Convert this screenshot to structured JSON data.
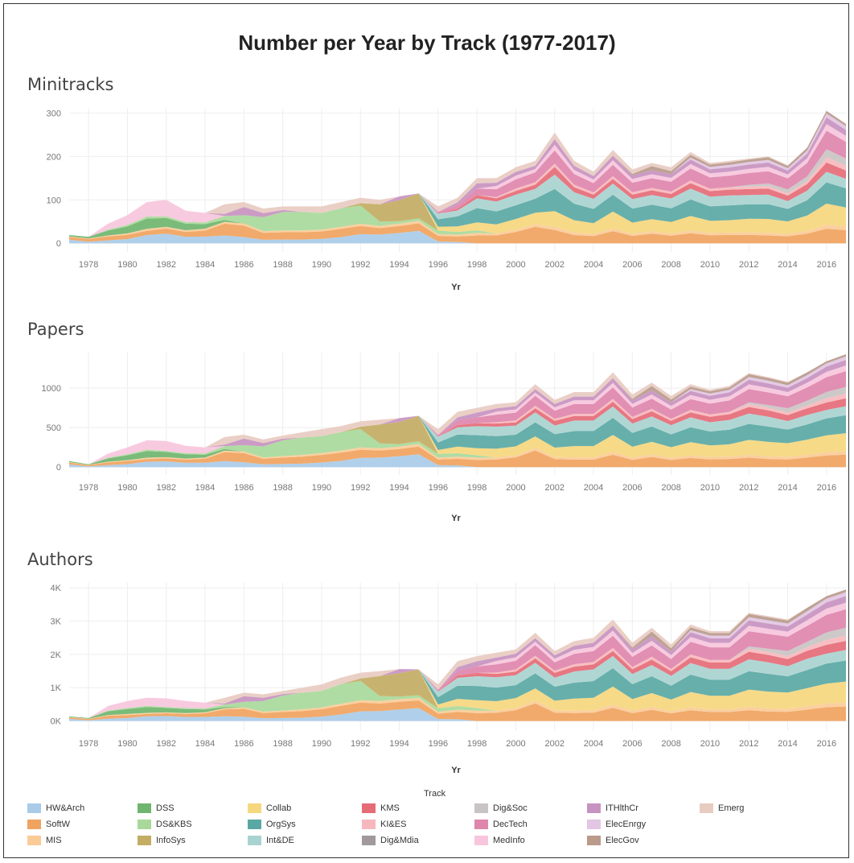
{
  "title": "Number per Year by Track (1977-2017)",
  "legend_title": "Track",
  "tracks": [
    {
      "name": "HW&Arch",
      "color": "#a9cbe8"
    },
    {
      "name": "SoftW",
      "color": "#f0a35e"
    },
    {
      "name": "MIS",
      "color": "#fbcb97"
    },
    {
      "name": "DSS",
      "color": "#6fb56f"
    },
    {
      "name": "DS&KBS",
      "color": "#a8d99a"
    },
    {
      "name": "InfoSys",
      "color": "#c2ad63"
    },
    {
      "name": "Collab",
      "color": "#f5d77e"
    },
    {
      "name": "OrgSys",
      "color": "#5aa8a4"
    },
    {
      "name": "Int&DE",
      "color": "#a9d3d0"
    },
    {
      "name": "KMS",
      "color": "#e56b77"
    },
    {
      "name": "KI&ES",
      "color": "#f7b8bd"
    },
    {
      "name": "Dig&Mdia",
      "color": "#a09a9a"
    },
    {
      "name": "Dig&Soc",
      "color": "#c9c4c4"
    },
    {
      "name": "DecTech",
      "color": "#de86ac"
    },
    {
      "name": "MedInfo",
      "color": "#f7c6dc"
    },
    {
      "name": "ITHlthCr",
      "color": "#c793c0"
    },
    {
      "name": "ElecEnrgy",
      "color": "#e2c6e3"
    },
    {
      "name": "ElecGov",
      "color": "#b99a8b"
    },
    {
      "name": "Emerg",
      "color": "#e8cbc1"
    }
  ],
  "chart_data": [
    {
      "type": "area",
      "panel": "Minitracks",
      "xlabel": "Yr",
      "ylabel": "",
      "x": [
        1977,
        1978,
        1979,
        1980,
        1981,
        1982,
        1983,
        1984,
        1985,
        1986,
        1987,
        1988,
        1989,
        1990,
        1991,
        1992,
        1993,
        1994,
        1995,
        1996,
        1997,
        1998,
        1999,
        2000,
        2001,
        2002,
        2003,
        2004,
        2005,
        2006,
        2007,
        2008,
        2009,
        2010,
        2011,
        2012,
        2013,
        2014,
        2015,
        2016,
        2017
      ],
      "xticks": [
        1978,
        1980,
        1982,
        1984,
        1986,
        1988,
        1990,
        1992,
        1994,
        1996,
        1998,
        2000,
        2002,
        2004,
        2006,
        2008,
        2010,
        2012,
        2014,
        2016
      ],
      "ylim": [
        -20,
        310
      ],
      "yticks": [
        0,
        100,
        200,
        300
      ],
      "ytick_labels": [
        "0",
        "100",
        "200",
        "300"
      ],
      "totals": [
        30,
        25,
        45,
        65,
        95,
        100,
        75,
        70,
        90,
        95,
        80,
        85,
        85,
        85,
        95,
        105,
        100,
        108,
        115,
        85,
        105,
        150,
        150,
        175,
        190,
        255,
        190,
        165,
        215,
        170,
        185,
        175,
        210,
        185,
        190,
        195,
        200,
        180,
        220,
        305,
        275
      ]
    },
    {
      "type": "area",
      "panel": "Papers",
      "xlabel": "Yr",
      "ylabel": "",
      "x": [
        1977,
        1978,
        1979,
        1980,
        1981,
        1982,
        1983,
        1984,
        1985,
        1986,
        1987,
        1988,
        1989,
        1990,
        1991,
        1992,
        1993,
        1994,
        1995,
        1996,
        1997,
        1998,
        1999,
        2000,
        2001,
        2002,
        2003,
        2004,
        2005,
        2006,
        2007,
        2008,
        2009,
        2010,
        2011,
        2012,
        2013,
        2014,
        2015,
        2016,
        2017
      ],
      "xticks": [
        1978,
        1980,
        1982,
        1984,
        1986,
        1988,
        1990,
        1992,
        1994,
        1996,
        1998,
        2000,
        2002,
        2004,
        2006,
        2008,
        2010,
        2012,
        2014,
        2016
      ],
      "ylim": [
        -100,
        1450
      ],
      "yticks": [
        0,
        500,
        1000
      ],
      "ytick_labels": [
        "0",
        "500",
        "1000"
      ],
      "totals": [
        120,
        60,
        170,
        250,
        340,
        330,
        270,
        250,
        380,
        410,
        350,
        400,
        440,
        480,
        520,
        580,
        600,
        620,
        650,
        480,
        700,
        750,
        800,
        820,
        1050,
        850,
        950,
        950,
        1200,
        920,
        1070,
        900,
        1050,
        980,
        1030,
        1190,
        1140,
        1080,
        1200,
        1340,
        1430
      ]
    },
    {
      "type": "area",
      "panel": "Authors",
      "xlabel": "Yr",
      "ylabel": "",
      "x": [
        1977,
        1978,
        1979,
        1980,
        1981,
        1982,
        1983,
        1984,
        1985,
        1986,
        1987,
        1988,
        1989,
        1990,
        1991,
        1992,
        1993,
        1994,
        1995,
        1996,
        1997,
        1998,
        1999,
        2000,
        2001,
        2002,
        2003,
        2004,
        2005,
        2006,
        2007,
        2008,
        2009,
        2010,
        2011,
        2012,
        2013,
        2014,
        2015,
        2016,
        2017
      ],
      "xticks": [
        1978,
        1980,
        1982,
        1984,
        1986,
        1988,
        1990,
        1992,
        1994,
        1996,
        1998,
        2000,
        2002,
        2004,
        2006,
        2008,
        2010,
        2012,
        2014,
        2016
      ],
      "ylim": [
        -300,
        4150
      ],
      "yticks": [
        0,
        1000,
        2000,
        3000,
        4000
      ],
      "ytick_labels": [
        "0K",
        "1K",
        "2K",
        "3K",
        "4K"
      ],
      "totals": [
        220,
        150,
        450,
        600,
        700,
        680,
        600,
        550,
        700,
        850,
        800,
        900,
        1000,
        1100,
        1300,
        1450,
        1500,
        1560,
        1550,
        1100,
        1800,
        1950,
        2050,
        2150,
        2650,
        2100,
        2400,
        2500,
        3050,
        2350,
        2800,
        2300,
        2900,
        2700,
        2700,
        3250,
        3150,
        3050,
        3400,
        3750,
        3950
      ]
    }
  ],
  "shares": [
    [
      0.28,
      0.2,
      0.05,
      0.1,
      0.0,
      0.0,
      0.0,
      0.0,
      0.0,
      0.0,
      0.0,
      0.0,
      0.0,
      0.0,
      0.0,
      0.0,
      0.0,
      0.0,
      0.0,
      0.37
    ],
    [
      0.15,
      0.25,
      0.05,
      0.15,
      0.0,
      0.0,
      0.0,
      0.0,
      0.0,
      0.0,
      0.0,
      0.0,
      0.0,
      0.0,
      0.0,
      0.0,
      0.0,
      0.0,
      0.0,
      0.4
    ],
    [
      0.15,
      0.2,
      0.05,
      0.25,
      0.05,
      0.0,
      0.0,
      0.0,
      0.0,
      0.0,
      0.0,
      0.0,
      0.0,
      0.0,
      0.3,
      0.0,
      0.0,
      0.0,
      0.0,
      0.0
    ],
    [
      0.15,
      0.15,
      0.05,
      0.25,
      0.05,
      0.0,
      0.0,
      0.0,
      0.0,
      0.0,
      0.0,
      0.0,
      0.0,
      0.0,
      0.35,
      0.0,
      0.0,
      0.0,
      0.0,
      0.0
    ],
    [
      0.2,
      0.1,
      0.05,
      0.25,
      0.05,
      0.0,
      0.0,
      0.0,
      0.0,
      0.0,
      0.0,
      0.0,
      0.0,
      0.0,
      0.35,
      0.0,
      0.0,
      0.0,
      0.0,
      0.0
    ],
    [
      0.22,
      0.12,
      0.04,
      0.2,
      0.04,
      0.0,
      0.0,
      0.0,
      0.0,
      0.0,
      0.0,
      0.0,
      0.0,
      0.0,
      0.38,
      0.0,
      0.0,
      0.0,
      0.0,
      0.0
    ],
    [
      0.2,
      0.15,
      0.05,
      0.2,
      0.05,
      0.0,
      0.0,
      0.0,
      0.0,
      0.0,
      0.0,
      0.0,
      0.0,
      0.0,
      0.35,
      0.0,
      0.0,
      0.0,
      0.0,
      0.0
    ],
    [
      0.22,
      0.2,
      0.06,
      0.15,
      0.06,
      0.0,
      0.0,
      0.0,
      0.0,
      0.0,
      0.0,
      0.0,
      0.0,
      0.0,
      0.31,
      0.0,
      0.0,
      0.0,
      0.0,
      0.0
    ],
    [
      0.2,
      0.3,
      0.05,
      0.05,
      0.1,
      0.0,
      0.0,
      0.0,
      0.0,
      0.0,
      0.0,
      0.0,
      0.0,
      0.0,
      0.0,
      0.05,
      0.0,
      0.0,
      0.25,
      0.0
    ],
    [
      0.15,
      0.28,
      0.05,
      0.0,
      0.2,
      0.0,
      0.0,
      0.0,
      0.0,
      0.0,
      0.0,
      0.0,
      0.0,
      0.0,
      0.0,
      0.2,
      0.0,
      0.0,
      0.12,
      0.0
    ],
    [
      0.1,
      0.2,
      0.05,
      0.0,
      0.4,
      0.0,
      0.0,
      0.0,
      0.0,
      0.0,
      0.0,
      0.0,
      0.0,
      0.0,
      0.0,
      0.12,
      0.0,
      0.0,
      0.13,
      0.0
    ],
    [
      0.1,
      0.2,
      0.05,
      0.0,
      0.5,
      0.0,
      0.0,
      0.0,
      0.0,
      0.0,
      0.0,
      0.0,
      0.0,
      0.0,
      0.0,
      0.05,
      0.0,
      0.0,
      0.1,
      0.0
    ],
    [
      0.1,
      0.2,
      0.05,
      0.0,
      0.5,
      0.0,
      0.0,
      0.0,
      0.0,
      0.0,
      0.0,
      0.0,
      0.0,
      0.0,
      0.0,
      0.0,
      0.0,
      0.0,
      0.15,
      0.0
    ],
    [
      0.12,
      0.2,
      0.05,
      0.0,
      0.45,
      0.0,
      0.0,
      0.0,
      0.0,
      0.0,
      0.0,
      0.0,
      0.0,
      0.0,
      0.0,
      0.0,
      0.0,
      0.0,
      0.18,
      0.0
    ],
    [
      0.15,
      0.2,
      0.05,
      0.0,
      0.45,
      0.0,
      0.0,
      0.0,
      0.0,
      0.0,
      0.0,
      0.0,
      0.0,
      0.0,
      0.0,
      0.0,
      0.0,
      0.0,
      0.15,
      0.0
    ],
    [
      0.2,
      0.18,
      0.05,
      0.0,
      0.4,
      0.05,
      0.0,
      0.0,
      0.0,
      0.0,
      0.0,
      0.0,
      0.0,
      0.0,
      0.0,
      0.0,
      0.0,
      0.0,
      0.12,
      0.0
    ],
    [
      0.2,
      0.15,
      0.05,
      0.0,
      0.1,
      0.4,
      0.0,
      0.0,
      0.0,
      0.0,
      0.0,
      0.0,
      0.0,
      0.0,
      0.0,
      0.0,
      0.0,
      0.0,
      0.1,
      0.0
    ],
    [
      0.22,
      0.15,
      0.05,
      0.0,
      0.05,
      0.45,
      0.0,
      0.0,
      0.0,
      0.0,
      0.0,
      0.0,
      0.0,
      0.0,
      0.0,
      0.08,
      0.0,
      0.0,
      0.0,
      0.0
    ],
    [
      0.25,
      0.15,
      0.05,
      0.0,
      0.05,
      0.5,
      0.0,
      0.0,
      0.0,
      0.0,
      0.0,
      0.0,
      0.0,
      0.0,
      0.0,
      0.0,
      0.0,
      0.0,
      0.0,
      0.0
    ],
    [
      0.05,
      0.15,
      0.05,
      0.0,
      0.1,
      0.0,
      0.1,
      0.2,
      0.15,
      0.0,
      0.0,
      0.0,
      0.0,
      0.05,
      0.0,
      0.0,
      0.0,
      0.0,
      0.15,
      0.0
    ],
    [
      0.03,
      0.12,
      0.04,
      0.0,
      0.06,
      0.0,
      0.12,
      0.22,
      0.13,
      0.04,
      0.0,
      0.0,
      0.0,
      0.08,
      0.0,
      0.06,
      0.0,
      0.0,
      0.1,
      0.0
    ],
    [
      0.0,
      0.12,
      0.04,
      0.0,
      0.04,
      0.0,
      0.12,
      0.22,
      0.15,
      0.05,
      0.0,
      0.0,
      0.0,
      0.1,
      0.0,
      0.08,
      0.0,
      0.0,
      0.08,
      0.0
    ],
    [
      0.0,
      0.12,
      0.03,
      0.0,
      0.0,
      0.0,
      0.14,
      0.2,
      0.15,
      0.05,
      0.02,
      0.0,
      0.0,
      0.12,
      0.05,
      0.05,
      0.0,
      0.0,
      0.07,
      0.0
    ],
    [
      0.0,
      0.15,
      0.03,
      0.0,
      0.0,
      0.0,
      0.14,
      0.18,
      0.14,
      0.05,
      0.03,
      0.0,
      0.0,
      0.12,
      0.05,
      0.05,
      0.0,
      0.0,
      0.06,
      0.0
    ],
    [
      0.0,
      0.2,
      0.03,
      0.0,
      0.0,
      0.0,
      0.14,
      0.17,
      0.12,
      0.05,
      0.03,
      0.0,
      0.0,
      0.12,
      0.04,
      0.04,
      0.0,
      0.0,
      0.06,
      0.0
    ],
    [
      0.0,
      0.12,
      0.03,
      0.0,
      0.0,
      0.0,
      0.14,
      0.2,
      0.13,
      0.07,
      0.03,
      0.0,
      0.0,
      0.12,
      0.05,
      0.05,
      0.0,
      0.0,
      0.06,
      0.0
    ],
    [
      0.0,
      0.1,
      0.03,
      0.0,
      0.0,
      0.0,
      0.15,
      0.2,
      0.14,
      0.06,
      0.03,
      0.0,
      0.0,
      0.13,
      0.05,
      0.05,
      0.0,
      0.0,
      0.06,
      0.0
    ],
    [
      0.0,
      0.1,
      0.03,
      0.0,
      0.0,
      0.0,
      0.15,
      0.2,
      0.14,
      0.06,
      0.03,
      0.0,
      0.0,
      0.13,
      0.05,
      0.05,
      0.0,
      0.0,
      0.06,
      0.0
    ],
    [
      0.0,
      0.13,
      0.03,
      0.0,
      0.0,
      0.0,
      0.18,
      0.18,
      0.12,
      0.05,
      0.03,
      0.0,
      0.0,
      0.12,
      0.05,
      0.05,
      0.0,
      0.0,
      0.06,
      0.0
    ],
    [
      0.0,
      0.1,
      0.03,
      0.0,
      0.0,
      0.0,
      0.15,
      0.19,
      0.13,
      0.06,
      0.03,
      0.0,
      0.0,
      0.13,
      0.05,
      0.05,
      0.0,
      0.02,
      0.06,
      0.0
    ],
    [
      0.0,
      0.12,
      0.03,
      0.0,
      0.0,
      0.0,
      0.15,
      0.18,
      0.12,
      0.06,
      0.03,
      0.0,
      0.0,
      0.12,
      0.05,
      0.05,
      0.0,
      0.05,
      0.04,
      0.0
    ],
    [
      0.0,
      0.1,
      0.03,
      0.0,
      0.0,
      0.0,
      0.15,
      0.18,
      0.13,
      0.06,
      0.03,
      0.0,
      0.0,
      0.13,
      0.05,
      0.05,
      0.0,
      0.04,
      0.05,
      0.0
    ],
    [
      0.0,
      0.11,
      0.03,
      0.0,
      0.0,
      0.0,
      0.16,
      0.18,
      0.12,
      0.06,
      0.03,
      0.0,
      0.0,
      0.13,
      0.05,
      0.05,
      0.02,
      0.03,
      0.03,
      0.0
    ],
    [
      0.0,
      0.1,
      0.03,
      0.0,
      0.0,
      0.0,
      0.15,
      0.18,
      0.12,
      0.07,
      0.03,
      0.0,
      0.0,
      0.14,
      0.05,
      0.05,
      0.03,
      0.03,
      0.02,
      0.0
    ],
    [
      0.0,
      0.1,
      0.03,
      0.0,
      0.0,
      0.0,
      0.15,
      0.18,
      0.12,
      0.07,
      0.03,
      0.0,
      0.0,
      0.14,
      0.05,
      0.05,
      0.03,
      0.03,
      0.02,
      0.0
    ],
    [
      0.0,
      0.1,
      0.03,
      0.0,
      0.0,
      0.0,
      0.16,
      0.17,
      0.11,
      0.07,
      0.03,
      0.0,
      0.02,
      0.14,
      0.05,
      0.05,
      0.03,
      0.03,
      0.01,
      0.0
    ],
    [
      0.0,
      0.09,
      0.03,
      0.0,
      0.0,
      0.0,
      0.16,
      0.17,
      0.11,
      0.07,
      0.03,
      0.0,
      0.03,
      0.14,
      0.05,
      0.05,
      0.03,
      0.03,
      0.01,
      0.0
    ],
    [
      0.0,
      0.09,
      0.03,
      0.0,
      0.0,
      0.0,
      0.16,
      0.16,
      0.1,
      0.07,
      0.03,
      0.0,
      0.05,
      0.14,
      0.05,
      0.05,
      0.03,
      0.03,
      0.01,
      0.0
    ],
    [
      0.0,
      0.1,
      0.03,
      0.0,
      0.0,
      0.0,
      0.16,
      0.16,
      0.1,
      0.07,
      0.03,
      0.0,
      0.05,
      0.14,
      0.05,
      0.05,
      0.03,
      0.03,
      0.0,
      0.0
    ],
    [
      0.0,
      0.11,
      0.03,
      0.0,
      0.0,
      0.0,
      0.16,
      0.16,
      0.08,
      0.07,
      0.04,
      0.0,
      0.06,
      0.14,
      0.05,
      0.05,
      0.03,
      0.02,
      0.0,
      0.0
    ],
    [
      0.0,
      0.11,
      0.03,
      0.0,
      0.0,
      0.0,
      0.16,
      0.16,
      0.08,
      0.07,
      0.04,
      0.0,
      0.06,
      0.14,
      0.05,
      0.05,
      0.03,
      0.02,
      0.0,
      0.0
    ]
  ]
}
